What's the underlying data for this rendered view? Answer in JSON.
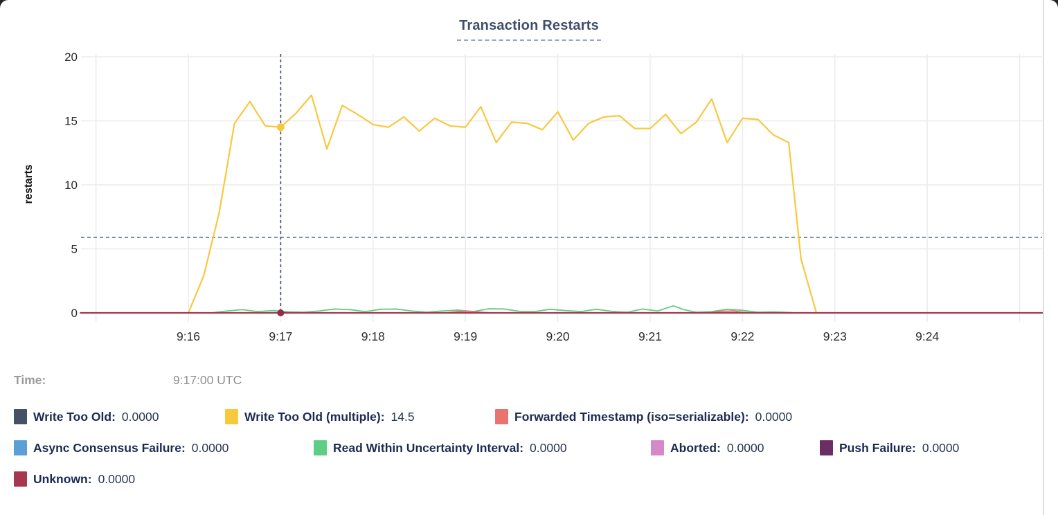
{
  "time": {
    "label": "Time:",
    "value": "9:17:00 UTC"
  },
  "legend": {
    "rows": [
      [
        {
          "label": "Write Too Old:",
          "value": "0.0000",
          "color": "#475166"
        },
        {
          "label": "Write Too Old (multiple):",
          "value": "14.5",
          "color": "#F8C83E"
        },
        {
          "label": "Forwarded Timestamp (iso=serializable):",
          "value": "0.0000",
          "color": "#E8736F"
        }
      ],
      [
        {
          "label": "Async Consensus Failure:",
          "value": "0.0000",
          "color": "#5C9FD6"
        },
        {
          "label": "Read Within Uncertainty Interval:",
          "value": "0.0000",
          "color": "#5ECE85"
        },
        {
          "label": "Aborted:",
          "value": "0.0000",
          "color": "#D689C8"
        },
        {
          "label": "Push Failure:",
          "value": "0.0000",
          "color": "#6C2D62"
        }
      ],
      [
        {
          "label": "Unknown:",
          "value": "0.0000",
          "color": "#A43850"
        }
      ]
    ]
  },
  "chart_data": {
    "type": "line",
    "title": "Transaction Restarts",
    "ylabel": "restarts",
    "ylim": [
      0,
      20
    ],
    "grid": true,
    "y_ticks": [
      0,
      5,
      10,
      15,
      20
    ],
    "x_ticks": [
      {
        "label": "9:16",
        "off": 0
      },
      {
        "label": "9:17",
        "off": 60
      },
      {
        "label": "9:18",
        "off": 120
      },
      {
        "label": "9:19",
        "off": 180
      },
      {
        "label": "9:20",
        "off": 240
      },
      {
        "label": "9:21",
        "off": 300
      },
      {
        "label": "9:22",
        "off": 360
      },
      {
        "label": "9:23",
        "off": 420
      },
      {
        "label": "9:24",
        "off": 480
      }
    ],
    "x_gridline_offsets": [
      -60,
      0,
      60,
      120,
      180,
      240,
      300,
      360,
      420,
      480,
      540
    ],
    "hover": {
      "time": "9:17:00 UTC",
      "offset_sec": 60,
      "vline_color": "#3C4D60",
      "avg_value": 5.9,
      "avg_color": "#53708E",
      "dots": [
        {
          "value": 14.5,
          "color": "#F8C83E",
          "r": 5.5
        },
        {
          "value": 0,
          "color": "#8E2F46",
          "r": 5
        }
      ]
    },
    "series": [
      {
        "name": "Write Too Old (multiple)",
        "color": "#F8C83E",
        "width": 2.2,
        "value_at_hover": 14.5,
        "points": [
          [
            0,
            0
          ],
          [
            10,
            2.9
          ],
          [
            20,
            7.8
          ],
          [
            30,
            14.8
          ],
          [
            40,
            16.5
          ],
          [
            50,
            14.6
          ],
          [
            60,
            14.5
          ],
          [
            70,
            15.6
          ],
          [
            80,
            17.0
          ],
          [
            90,
            12.8
          ],
          [
            100,
            16.2
          ],
          [
            110,
            15.5
          ],
          [
            120,
            14.7
          ],
          [
            130,
            14.5
          ],
          [
            140,
            15.3
          ],
          [
            150,
            14.2
          ],
          [
            160,
            15.2
          ],
          [
            170,
            14.6
          ],
          [
            180,
            14.5
          ],
          [
            190,
            16.1
          ],
          [
            200,
            13.3
          ],
          [
            210,
            14.9
          ],
          [
            220,
            14.8
          ],
          [
            230,
            14.3
          ],
          [
            240,
            15.7
          ],
          [
            250,
            13.5
          ],
          [
            260,
            14.8
          ],
          [
            270,
            15.3
          ],
          [
            280,
            15.4
          ],
          [
            290,
            14.4
          ],
          [
            300,
            14.4
          ],
          [
            310,
            15.5
          ],
          [
            320,
            14.0
          ],
          [
            330,
            14.9
          ],
          [
            340,
            16.7
          ],
          [
            350,
            13.3
          ],
          [
            360,
            15.2
          ],
          [
            370,
            15.1
          ],
          [
            380,
            13.9
          ],
          [
            390,
            13.3
          ],
          [
            398,
            4.2
          ],
          [
            408,
            0
          ]
        ]
      },
      {
        "name": "Read Within Uncertainty Interval",
        "color": "#5ECE85",
        "width": 1.8,
        "value_at_hover": 0,
        "points": [
          [
            15,
            0
          ],
          [
            25,
            0.15
          ],
          [
            35,
            0.25
          ],
          [
            45,
            0.1
          ],
          [
            55,
            0.18
          ],
          [
            65,
            0.08
          ],
          [
            75,
            0.05
          ],
          [
            85,
            0.15
          ],
          [
            95,
            0.3
          ],
          [
            105,
            0.25
          ],
          [
            115,
            0.1
          ],
          [
            125,
            0.28
          ],
          [
            135,
            0.3
          ],
          [
            145,
            0.15
          ],
          [
            155,
            0.05
          ],
          [
            165,
            0.15
          ],
          [
            175,
            0.22
          ],
          [
            185,
            0.1
          ],
          [
            195,
            0.32
          ],
          [
            205,
            0.3
          ],
          [
            215,
            0.12
          ],
          [
            225,
            0.1
          ],
          [
            235,
            0.28
          ],
          [
            245,
            0.18
          ],
          [
            255,
            0.1
          ],
          [
            265,
            0.28
          ],
          [
            275,
            0.12
          ],
          [
            285,
            0.05
          ],
          [
            295,
            0.3
          ],
          [
            305,
            0.15
          ],
          [
            315,
            0.55
          ],
          [
            322,
            0.25
          ],
          [
            330,
            0.05
          ],
          [
            340,
            0.1
          ],
          [
            350,
            0.28
          ],
          [
            360,
            0.2
          ],
          [
            370,
            0.05
          ],
          [
            380,
            0.08
          ],
          [
            390,
            0.03
          ],
          [
            395,
            0
          ]
        ]
      },
      {
        "name": "Forwarded Timestamp (iso=serializable)",
        "color": "#E8736F",
        "width": 2,
        "value_at_hover": 0,
        "points": [
          [
            -70,
            0
          ],
          [
            168,
            0
          ],
          [
            175,
            0.1
          ],
          [
            182,
            0.13
          ],
          [
            190,
            0.05
          ],
          [
            196,
            0
          ],
          [
            338,
            0
          ],
          [
            346,
            0.12
          ],
          [
            354,
            0.15
          ],
          [
            360,
            0.05
          ],
          [
            365,
            0
          ],
          [
            555,
            0
          ]
        ]
      },
      {
        "name": "Async Consensus Failure",
        "color": "#5C9FD6",
        "width": 2,
        "value_at_hover": 0,
        "points": [
          [
            -70,
            0
          ],
          [
            555,
            0
          ]
        ]
      },
      {
        "name": "Aborted",
        "color": "#D689C8",
        "width": 2,
        "value_at_hover": 0,
        "points": [
          [
            -70,
            0
          ],
          [
            555,
            0
          ]
        ]
      },
      {
        "name": "Push Failure",
        "color": "#6C2D62",
        "width": 2,
        "value_at_hover": 0,
        "points": [
          [
            -70,
            0
          ],
          [
            555,
            0
          ]
        ]
      },
      {
        "name": "Write Too Old",
        "color": "#475166",
        "width": 2,
        "value_at_hover": 0,
        "points": [
          [
            -70,
            0
          ],
          [
            555,
            0
          ]
        ]
      },
      {
        "name": "Unknown",
        "color": "#A5374E",
        "width": 2.2,
        "value_at_hover": 0,
        "points": [
          [
            -70,
            0
          ],
          [
            555,
            0
          ]
        ]
      }
    ]
  }
}
